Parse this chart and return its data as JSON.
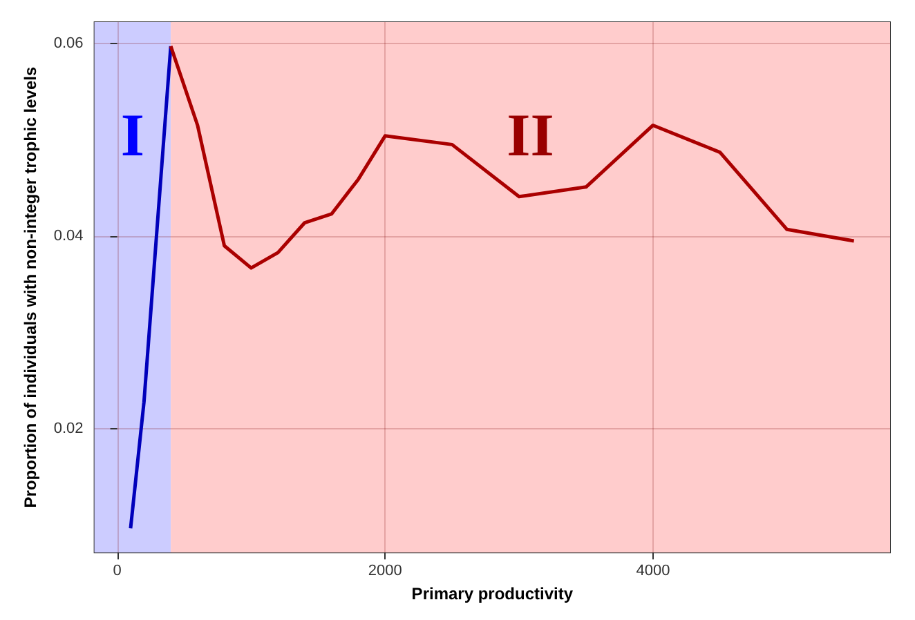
{
  "chart_data": {
    "type": "line",
    "xlabel": "Primary productivity",
    "ylabel": "Proportion of individuals with non-integer trophic levels",
    "series": [
      {
        "color": "#0000bb",
        "x": [
          100,
          200,
          400
        ],
        "values": [
          0.0097,
          0.0228,
          0.0597
        ]
      },
      {
        "color": "#aa0000",
        "x": [
          400,
          600,
          800,
          1000,
          1200,
          1400,
          1600,
          1800,
          2000,
          2500,
          3000,
          3500,
          4000,
          4500,
          5000,
          5500
        ],
        "values": [
          0.0597,
          0.0515,
          0.039,
          0.0367,
          0.0383,
          0.0414,
          0.0423,
          0.0459,
          0.0504,
          0.0495,
          0.0441,
          0.0451,
          0.0515,
          0.0487,
          0.0407,
          0.0395
        ]
      }
    ],
    "bands": [
      {
        "axis": "x",
        "from": -170,
        "to": 400,
        "label": "I",
        "color": "#ccccff"
      },
      {
        "axis": "x",
        "from": 400,
        "to": 5770,
        "label": "II",
        "color": "#ffcccc"
      }
    ],
    "xlim": [
      -170,
      5770
    ],
    "xticks": [
      0,
      2000,
      4000
    ],
    "ylim": [
      0.0072,
      0.0622
    ],
    "yticks": [
      0.02,
      0.04,
      0.06
    ],
    "grid": true,
    "marker": "none",
    "line_style": "solid"
  }
}
